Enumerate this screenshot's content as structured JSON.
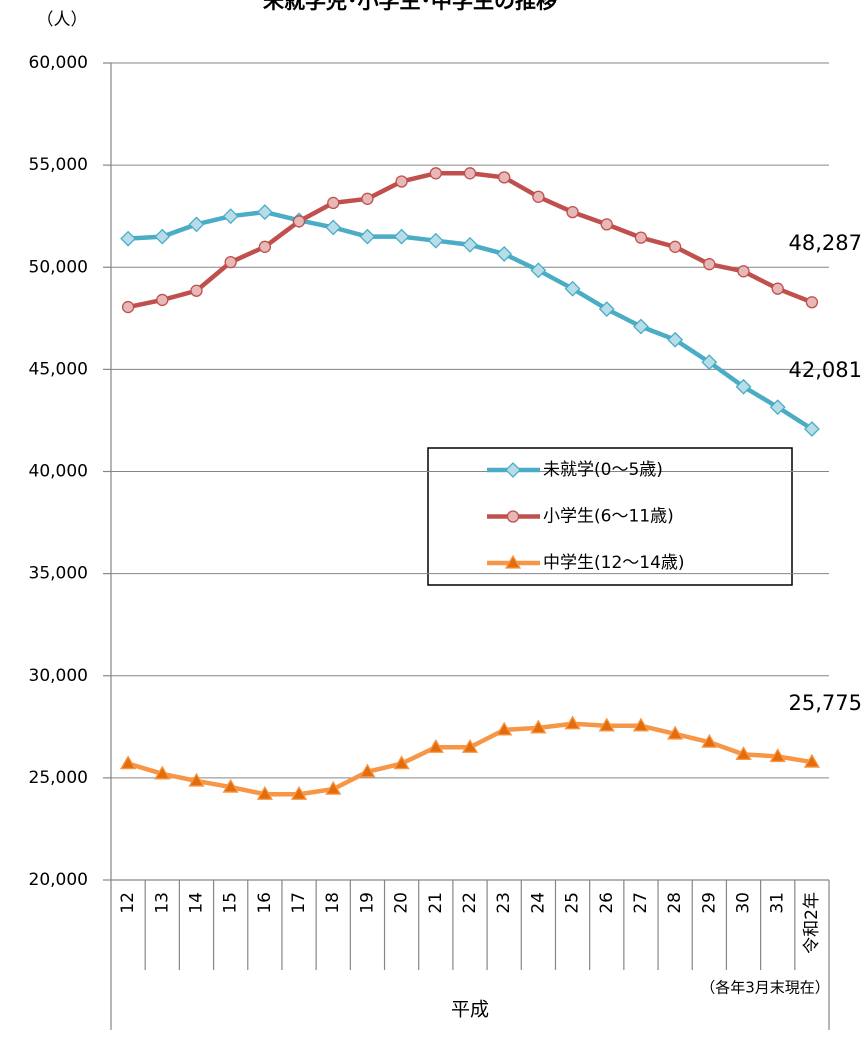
{
  "chart_data": {
    "type": "line",
    "title": "未就学児･小学生･中学生の推移",
    "y_label": "（人）",
    "group_label": "平成",
    "note": "（各年3月末現在）",
    "categories": [
      "12",
      "13",
      "14",
      "15",
      "16",
      "17",
      "18",
      "19",
      "20",
      "21",
      "22",
      "23",
      "24",
      "25",
      "26",
      "27",
      "28",
      "29",
      "30",
      "31",
      "令和2年"
    ],
    "series": [
      {
        "name": "未就学(0～5歳)",
        "color": "#4bacc6",
        "marker": "diamond",
        "marker_fill": "#b7dde8",
        "values": [
          51400,
          51500,
          52100,
          52500,
          52700,
          52300,
          51950,
          51500,
          51500,
          51300,
          51100,
          50650,
          49850,
          48950,
          47950,
          47100,
          46450,
          45350,
          44150,
          43150,
          42081
        ],
        "value_labels": [
          null,
          null,
          null,
          null,
          null,
          null,
          null,
          null,
          null,
          null,
          null,
          null,
          null,
          null,
          null,
          null,
          null,
          null,
          null,
          null,
          "42,081"
        ]
      },
      {
        "name": "小学生(6～11歳)",
        "color": "#c0504d",
        "marker": "circle",
        "marker_fill": "#e6b9b8",
        "values": [
          48050,
          48400,
          48850,
          50250,
          51000,
          52250,
          53150,
          53350,
          54200,
          54600,
          54600,
          54400,
          53450,
          52700,
          52100,
          51450,
          51000,
          50150,
          49800,
          48950,
          48287
        ],
        "value_labels": [
          null,
          null,
          null,
          null,
          null,
          null,
          null,
          null,
          null,
          null,
          null,
          null,
          null,
          null,
          null,
          null,
          null,
          null,
          null,
          null,
          "48,287"
        ]
      },
      {
        "name": "中学生(12～14歳)",
        "color": "#f79646",
        "marker": "triangle",
        "marker_fill": "#e46c0a",
        "values": [
          25700,
          25200,
          24850,
          24550,
          24200,
          24200,
          24450,
          25300,
          25700,
          26500,
          26500,
          27350,
          27450,
          27650,
          27550,
          27550,
          27150,
          26750,
          26150,
          26050,
          25775
        ],
        "value_labels": [
          null,
          null,
          null,
          null,
          null,
          null,
          null,
          null,
          null,
          null,
          null,
          null,
          null,
          null,
          null,
          null,
          null,
          null,
          null,
          null,
          "25,775"
        ]
      }
    ],
    "ylim": [
      20000,
      60000
    ],
    "yticks": [
      {
        "value": 20000,
        "label": "20,000"
      },
      {
        "value": 25000,
        "label": "25,000"
      },
      {
        "value": 30000,
        "label": "30,000"
      },
      {
        "value": 35000,
        "label": "35,000"
      },
      {
        "value": 40000,
        "label": "40,000"
      },
      {
        "value": 45000,
        "label": "45,000"
      },
      {
        "value": 50000,
        "label": "50,000"
      },
      {
        "value": 55000,
        "label": "55,000"
      },
      {
        "value": 60000,
        "label": "60,000"
      }
    ],
    "grid": true
  }
}
